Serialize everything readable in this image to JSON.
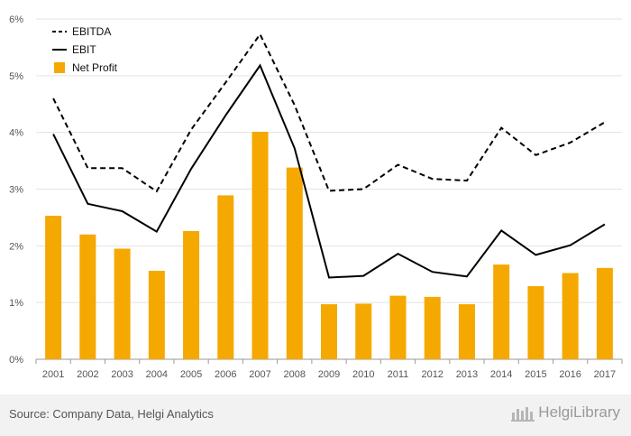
{
  "chart_data": {
    "type": "bar",
    "categories": [
      "2001",
      "2002",
      "2003",
      "2004",
      "2005",
      "2006",
      "2007",
      "2008",
      "2009",
      "2010",
      "2011",
      "2012",
      "2013",
      "2014",
      "2015",
      "2016",
      "2017"
    ],
    "series": [
      {
        "name": "EBITDA",
        "type": "line",
        "style": "dashed",
        "color": "#000000",
        "values": [
          4.6,
          3.37,
          3.37,
          2.96,
          4.05,
          4.88,
          5.73,
          4.48,
          2.97,
          3.0,
          3.43,
          3.18,
          3.15,
          4.08,
          3.6,
          3.82,
          4.18
        ]
      },
      {
        "name": "EBIT",
        "type": "line",
        "style": "solid",
        "color": "#000000",
        "values": [
          3.97,
          2.74,
          2.61,
          2.25,
          3.36,
          4.3,
          5.18,
          3.72,
          1.44,
          1.47,
          1.86,
          1.54,
          1.46,
          2.27,
          1.84,
          2.01,
          2.38
        ]
      },
      {
        "name": "Net Profit",
        "type": "bar",
        "color": "#f5a800",
        "values": [
          2.53,
          2.2,
          1.95,
          1.56,
          2.26,
          2.89,
          4.01,
          3.38,
          0.97,
          0.98,
          1.12,
          1.1,
          0.97,
          1.67,
          1.29,
          1.52,
          1.61
        ]
      }
    ],
    "yticks": [
      "0%",
      "1%",
      "2%",
      "3%",
      "4%",
      "5%",
      "6%"
    ],
    "ylim": [
      0,
      6
    ],
    "grid": true,
    "legend_position": "top-left"
  },
  "footer": {
    "source": "Source: Company Data, Helgi Analytics",
    "brand": "HelgiLibrary"
  }
}
